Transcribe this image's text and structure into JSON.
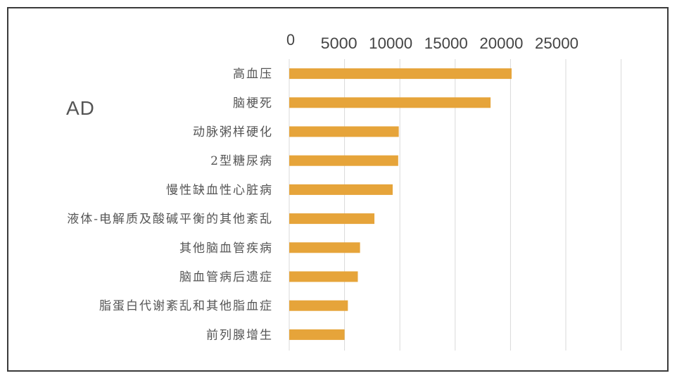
{
  "chart_data": {
    "type": "bar",
    "orientation": "horizontal",
    "series_label": "AD",
    "categories": [
      "高血压",
      "脑梗死",
      "动脉粥样硬化",
      "2型糖尿病",
      "慢性缺血性心脏病",
      "液体-电解质及酸碱平衡的其他紊乱",
      "其他脑血管疾病",
      "脑血管病后遗症",
      "脂蛋白代谢紊乱和其他脂血症",
      "前列腺增生"
    ],
    "values": [
      20100,
      18200,
      9900,
      9850,
      9350,
      7700,
      6400,
      6200,
      5300,
      5000
    ],
    "ticks": [
      "0",
      "5000",
      "10000",
      "15000",
      "20000",
      "25000"
    ],
    "tick_values": [
      0,
      5000,
      10000,
      15000,
      20000,
      25000
    ],
    "xlim": [
      0,
      25000
    ],
    "bar_color": "#e6a43a",
    "grid": true,
    "axis_position": "top"
  }
}
